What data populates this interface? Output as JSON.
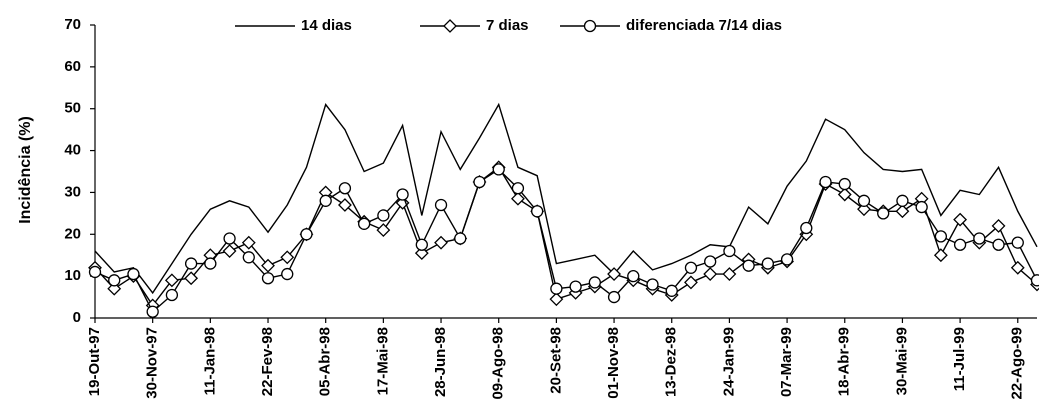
{
  "chart_data": {
    "type": "line",
    "y_label": "Incidência (%)",
    "categories": [
      "19-Out-97",
      null,
      null,
      "30-Nov-97",
      null,
      null,
      "11-Jan-98",
      null,
      null,
      "22-Fev-98",
      null,
      null,
      "05-Abr-98",
      null,
      null,
      "17-Mai-98",
      null,
      null,
      "28-Jun-98",
      null,
      null,
      "09-Ago-98",
      null,
      null,
      "20-Set-98",
      null,
      null,
      "01-Nov-98",
      null,
      null,
      "13-Dez-98",
      null,
      null,
      "24-Jan-99",
      null,
      null,
      "07-Mar-99",
      null,
      null,
      "18-Abr-99",
      null,
      null,
      "30-Mai-99",
      null,
      null,
      "11-Jul-99",
      null,
      null,
      "22-Ago-99",
      null
    ],
    "series": [
      {
        "name": "14 dias",
        "color": "#000000",
        "marker": "none",
        "values": [
          16,
          11,
          12,
          6,
          13,
          20,
          26,
          28,
          26.5,
          20.5,
          27,
          36,
          51,
          45,
          35,
          37,
          46,
          24.5,
          44.5,
          35.5,
          43,
          51,
          36,
          34,
          13,
          14,
          15,
          10.5,
          16,
          11.5,
          13,
          15,
          17.5,
          17,
          26.5,
          22.5,
          31.5,
          37.5,
          47.5,
          45,
          39.5,
          35.5,
          35,
          35.5,
          24.5,
          30.5,
          29.5,
          36,
          25.5,
          17
        ]
      },
      {
        "name": "7 dias",
        "color": "#000000",
        "marker": "diamond",
        "values": [
          12,
          7,
          10,
          3,
          9,
          9.5,
          15,
          16,
          18,
          12.5,
          14.5,
          20,
          30,
          27,
          23,
          21,
          27.5,
          15.5,
          18,
          19,
          32.5,
          36,
          28.5,
          25.5,
          4.5,
          6,
          7.5,
          10.5,
          9,
          7,
          5.5,
          8.5,
          10.5,
          10.5,
          14,
          12,
          13.5,
          20,
          32,
          29.5,
          26,
          25.5,
          25.5,
          28.5,
          15,
          23.5,
          18,
          22,
          12,
          8
        ]
      },
      {
        "name": "diferenciada 7/14 dias",
        "color": "#000000",
        "marker": "circle",
        "values": [
          11,
          9,
          10.5,
          1.5,
          5.5,
          13,
          13,
          19,
          14.5,
          9.5,
          10.5,
          20,
          28,
          31,
          22.5,
          24.5,
          29.5,
          17.5,
          27,
          19,
          32.5,
          35.5,
          31,
          25.5,
          7,
          7.5,
          8.5,
          5,
          10,
          8,
          6.5,
          12,
          13.5,
          16,
          12.5,
          13,
          14,
          21.5,
          32.5,
          32,
          28,
          25,
          28,
          26.5,
          19.5,
          17.5,
          19,
          17.5,
          18,
          9
        ]
      }
    ],
    "ylim": [
      0,
      70
    ],
    "yticks": [
      0,
      10,
      20,
      30,
      40,
      50,
      60,
      70
    ],
    "grid": false
  }
}
